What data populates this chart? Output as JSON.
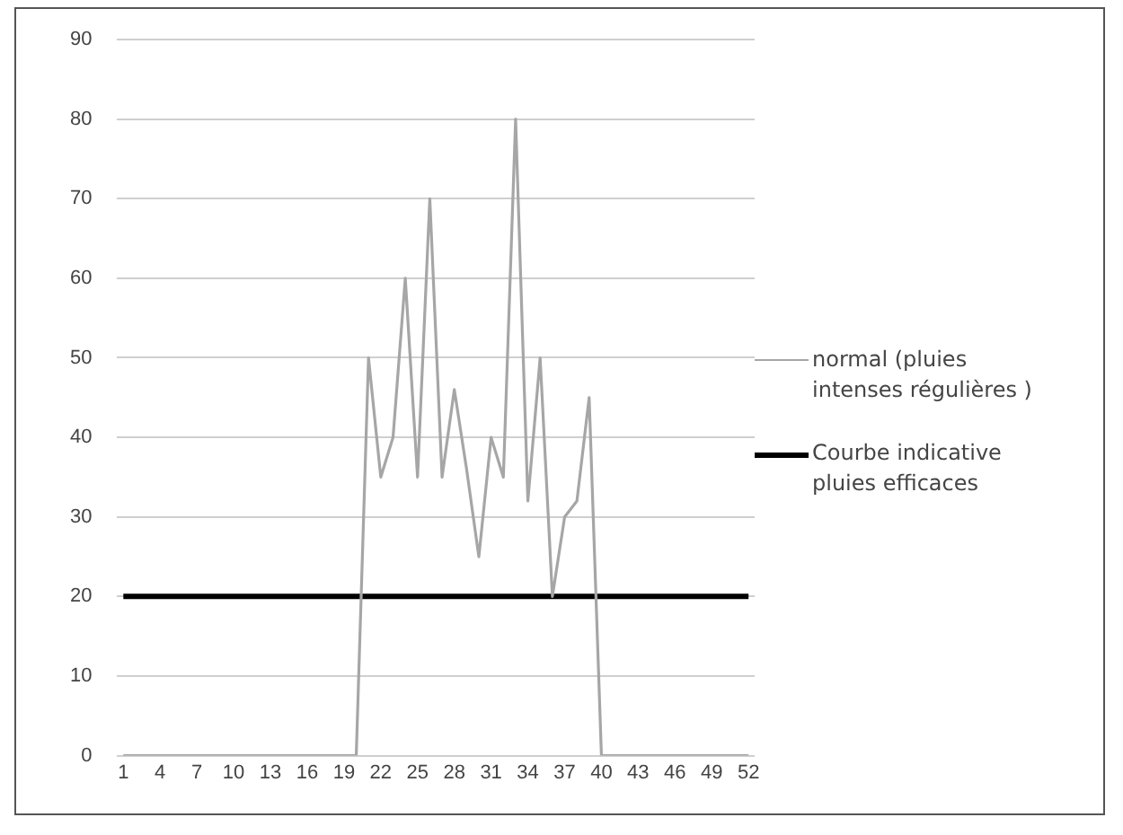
{
  "chart_data": {
    "type": "line",
    "categories": [
      "1",
      null,
      null,
      "4",
      null,
      null,
      "7",
      null,
      null,
      "10",
      null,
      null,
      "13",
      null,
      null,
      "16",
      null,
      null,
      "19",
      null,
      null,
      "22",
      null,
      null,
      "25",
      null,
      null,
      "28",
      null,
      null,
      "31",
      null,
      null,
      "34",
      null,
      null,
      "37",
      null,
      null,
      "40",
      null,
      null,
      "43",
      null,
      null,
      "46",
      null,
      null,
      "49",
      null,
      null,
      "52"
    ],
    "series": [
      {
        "name": "normal (pluies intenses régulières )",
        "color": "#a6a6a6",
        "values": [
          0,
          0,
          0,
          0,
          0,
          0,
          0,
          0,
          0,
          0,
          0,
          0,
          0,
          0,
          0,
          0,
          0,
          0,
          0,
          0,
          50,
          35,
          40,
          60,
          35,
          70,
          35,
          46,
          36,
          25,
          40,
          35,
          80,
          32,
          50,
          20,
          30,
          32,
          45,
          0,
          0,
          0,
          0,
          0,
          0,
          0,
          0,
          0,
          0,
          0,
          0,
          0
        ]
      },
      {
        "name": "Courbe indicative pluies efficaces",
        "color": "#000000",
        "values": [
          20,
          20,
          20,
          20,
          20,
          20,
          20,
          20,
          20,
          20,
          20,
          20,
          20,
          20,
          20,
          20,
          20,
          20,
          20,
          20,
          20,
          20,
          20,
          20,
          20,
          20,
          20,
          20,
          20,
          20,
          20,
          20,
          20,
          20,
          20,
          20,
          20,
          20,
          20,
          20,
          20,
          20,
          20,
          20,
          20,
          20,
          20,
          20,
          20,
          20,
          20,
          20
        ]
      }
    ],
    "ylim": [
      0,
      90
    ],
    "yticks": [
      0,
      10,
      20,
      30,
      40,
      50,
      60,
      70,
      80,
      90
    ],
    "grid": "y",
    "legend": "right",
    "marker": "none",
    "line_style": "solid"
  }
}
